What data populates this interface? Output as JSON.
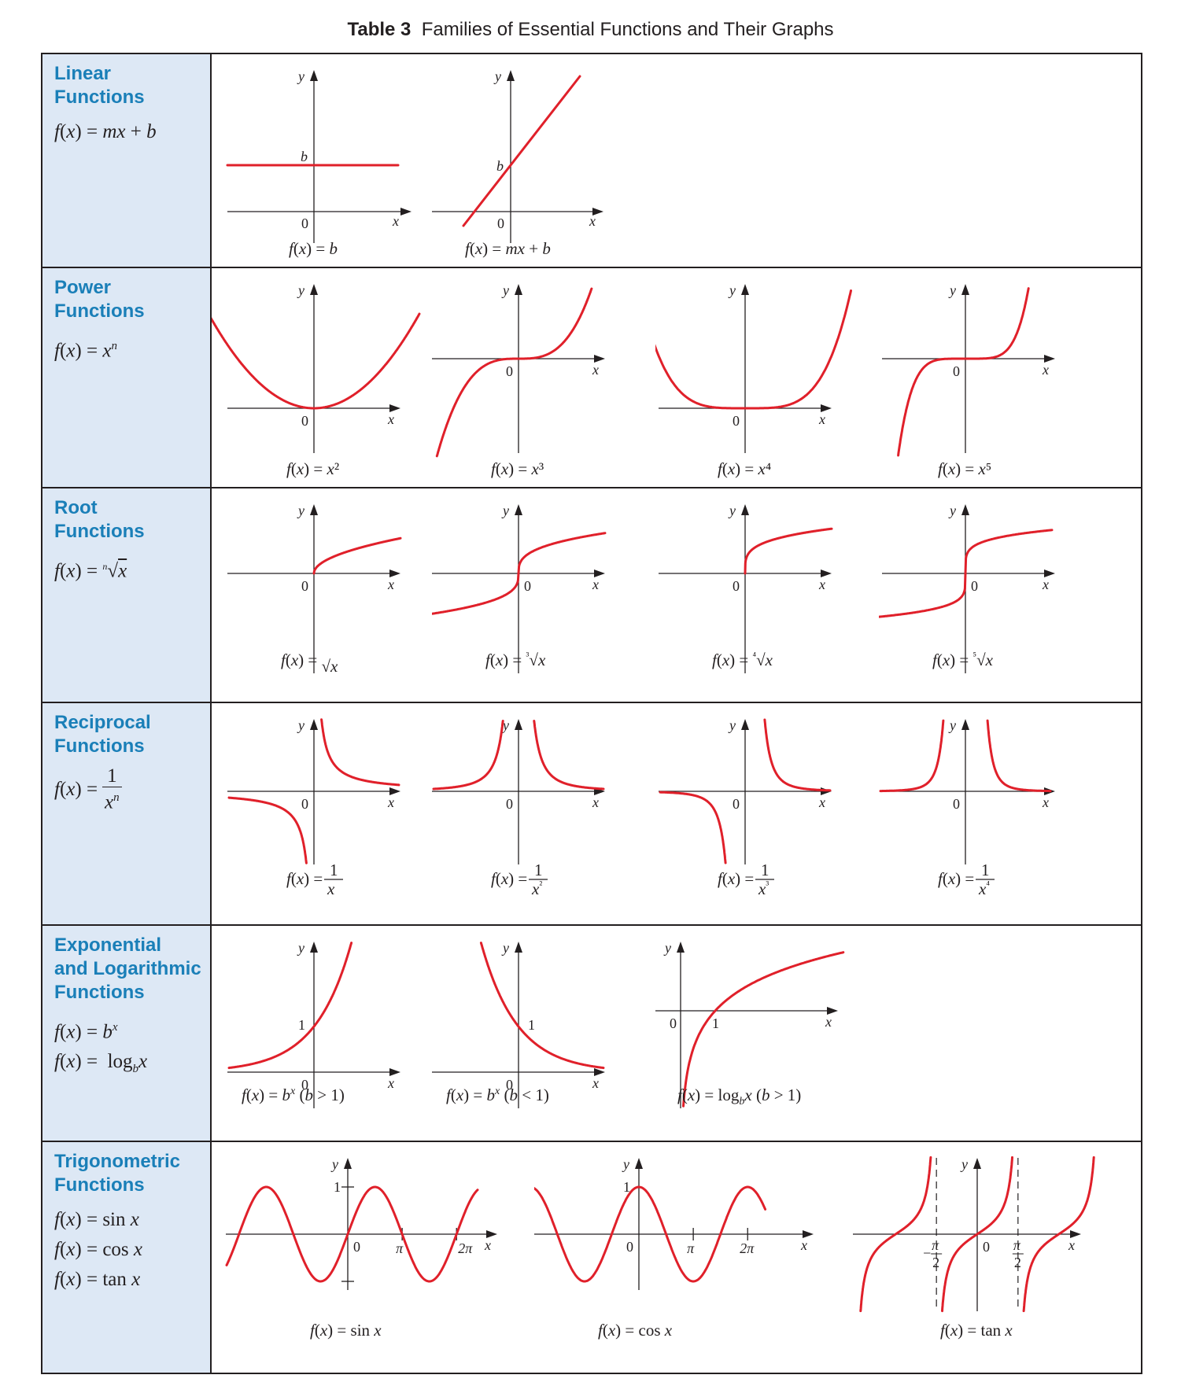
{
  "title": {
    "bold": "Table 3",
    "rest": "Families of Essential Functions and Their Graphs"
  },
  "rows": [
    {
      "category": [
        "Linear",
        "Functions"
      ],
      "formulas": [
        "f(x) = mx + b"
      ],
      "graphs": [
        {
          "caption": "f(x) = b",
          "fn": "const b"
        },
        {
          "caption": "f(x) = mx + b",
          "fn": "mx + b"
        }
      ]
    },
    {
      "category": [
        "Power",
        "Functions"
      ],
      "formulas": [
        "f(x) = x^n"
      ],
      "graphs": [
        {
          "caption": "f(x) = x²",
          "fn": "x^2"
        },
        {
          "caption": "f(x) = x³",
          "fn": "x^3"
        },
        {
          "caption": "f(x) = x⁴",
          "fn": "x^4"
        },
        {
          "caption": "f(x) = x⁵",
          "fn": "x^5"
        }
      ]
    },
    {
      "category": [
        "Root",
        "Functions"
      ],
      "formulas": [
        "f(x) = ⁿ√x"
      ],
      "graphs": [
        {
          "caption": "f(x) = √x",
          "fn": "x^(1/2)"
        },
        {
          "caption": "f(x) = ³√x",
          "fn": "x^(1/3)"
        },
        {
          "caption": "f(x) = ⁴√x",
          "fn": "x^(1/4)"
        },
        {
          "caption": "f(x) = ⁵√x",
          "fn": "x^(1/5)"
        }
      ]
    },
    {
      "category": [
        "Reciprocal",
        "Functions"
      ],
      "formulas": [
        "f(x) = 1/xⁿ"
      ],
      "graphs": [
        {
          "caption": "f(x) = 1/x",
          "fn": "1/x"
        },
        {
          "caption": "f(x) = 1/x²",
          "fn": "1/x^2"
        },
        {
          "caption": "f(x) = 1/x³",
          "fn": "1/x^3"
        },
        {
          "caption": "f(x) = 1/x⁴",
          "fn": "1/x^4"
        }
      ]
    },
    {
      "category": [
        "Exponential",
        "and Logarithmic",
        "Functions"
      ],
      "formulas": [
        "f(x) = b^x",
        "f(x) = log_b x"
      ],
      "graphs": [
        {
          "caption": "f(x) = b^x (b > 1)",
          "fn": "b^x, b>1"
        },
        {
          "caption": "f(x) = b^x (b < 1)",
          "fn": "b^x, b<1"
        },
        {
          "caption": "f(x) = log_b x (b > 1)",
          "fn": "log_b x"
        }
      ]
    },
    {
      "category": [
        "Trigonometric",
        "Functions"
      ],
      "formulas": [
        "f(x) = sin x",
        "f(x) = cos x",
        "f(x) = tan x"
      ],
      "graphs": [
        {
          "caption": "f(x) = sin x",
          "fn": "sin x"
        },
        {
          "caption": "f(x) = cos x",
          "fn": "cos x"
        },
        {
          "caption": "f(x) = tan x",
          "fn": "tan x"
        }
      ]
    }
  ],
  "axis_labels": {
    "x": "x",
    "y": "y",
    "origin": "0",
    "b": "b",
    "one": "1",
    "pi": "π",
    "two_pi": "2π",
    "pi_half_num": "π",
    "pi_half_den": "2"
  },
  "colors": {
    "curve": "#e0202a",
    "category_text": "#1a7fb8",
    "label_column_bg": "#dde8f5",
    "ink": "#231f20"
  }
}
